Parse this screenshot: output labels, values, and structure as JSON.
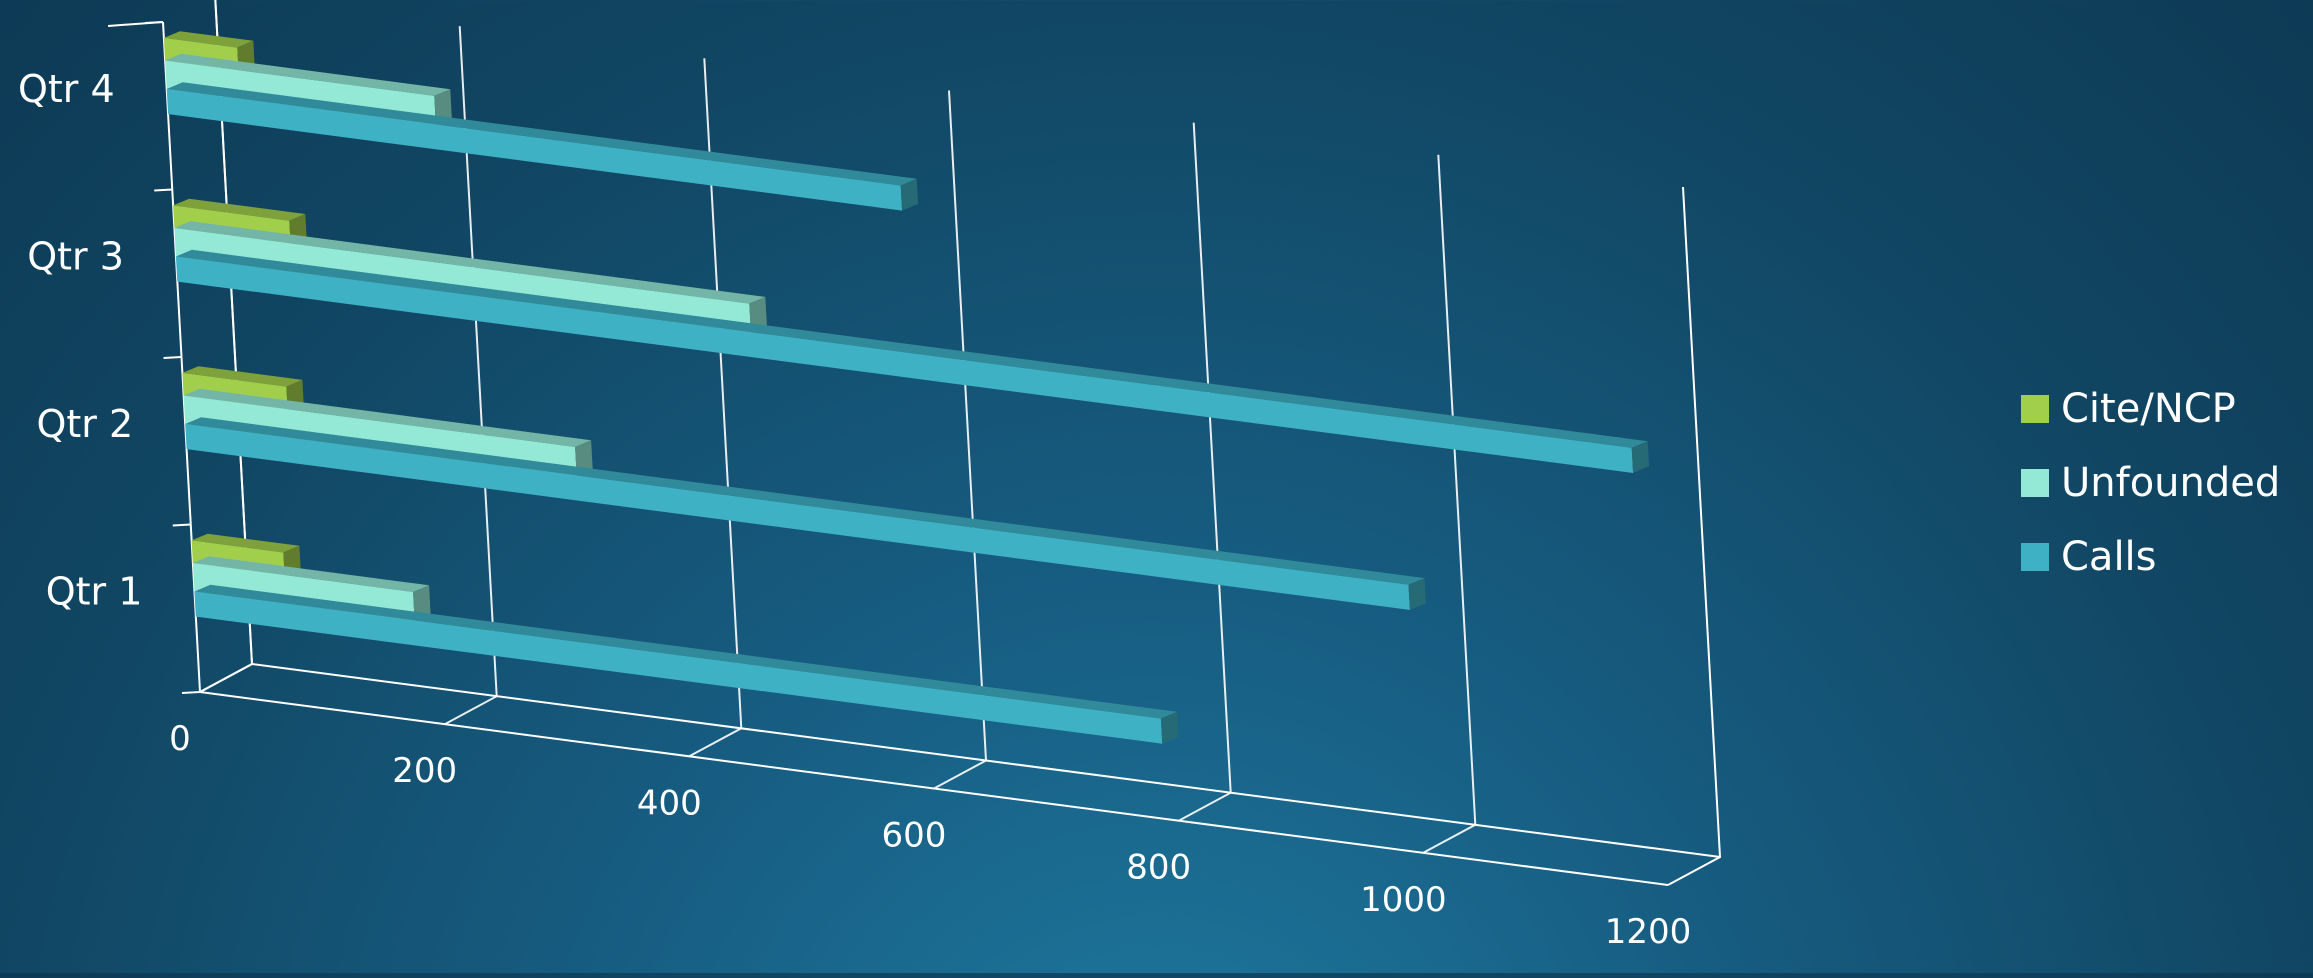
{
  "chart_data": {
    "type": "bar",
    "orientation": "horizontal",
    "style": "3d",
    "title": "",
    "xlabel": "",
    "ylabel": "",
    "categories": [
      "Qtr 1",
      "Qtr 2",
      "Qtr 3",
      "Qtr 4"
    ],
    "series": [
      {
        "name": "Calls",
        "values": [
          790,
          1000,
          1190,
          600
        ],
        "color": "#3fb1c4"
      },
      {
        "name": "Unfounded",
        "values": [
          180,
          320,
          470,
          220
        ],
        "color": "#93e9d6"
      },
      {
        "name": "Cite/NCP",
        "values": [
          75,
          85,
          95,
          60
        ],
        "color": "#a1cf4b"
      }
    ],
    "xlim": [
      0,
      1200
    ],
    "xticks": [
      "0",
      "200",
      "400",
      "600",
      "800",
      "1000",
      "1200"
    ],
    "grid": true,
    "legend": {
      "position": "right",
      "entries": [
        "Cite/NCP",
        "Unfounded",
        "Calls"
      ]
    }
  }
}
